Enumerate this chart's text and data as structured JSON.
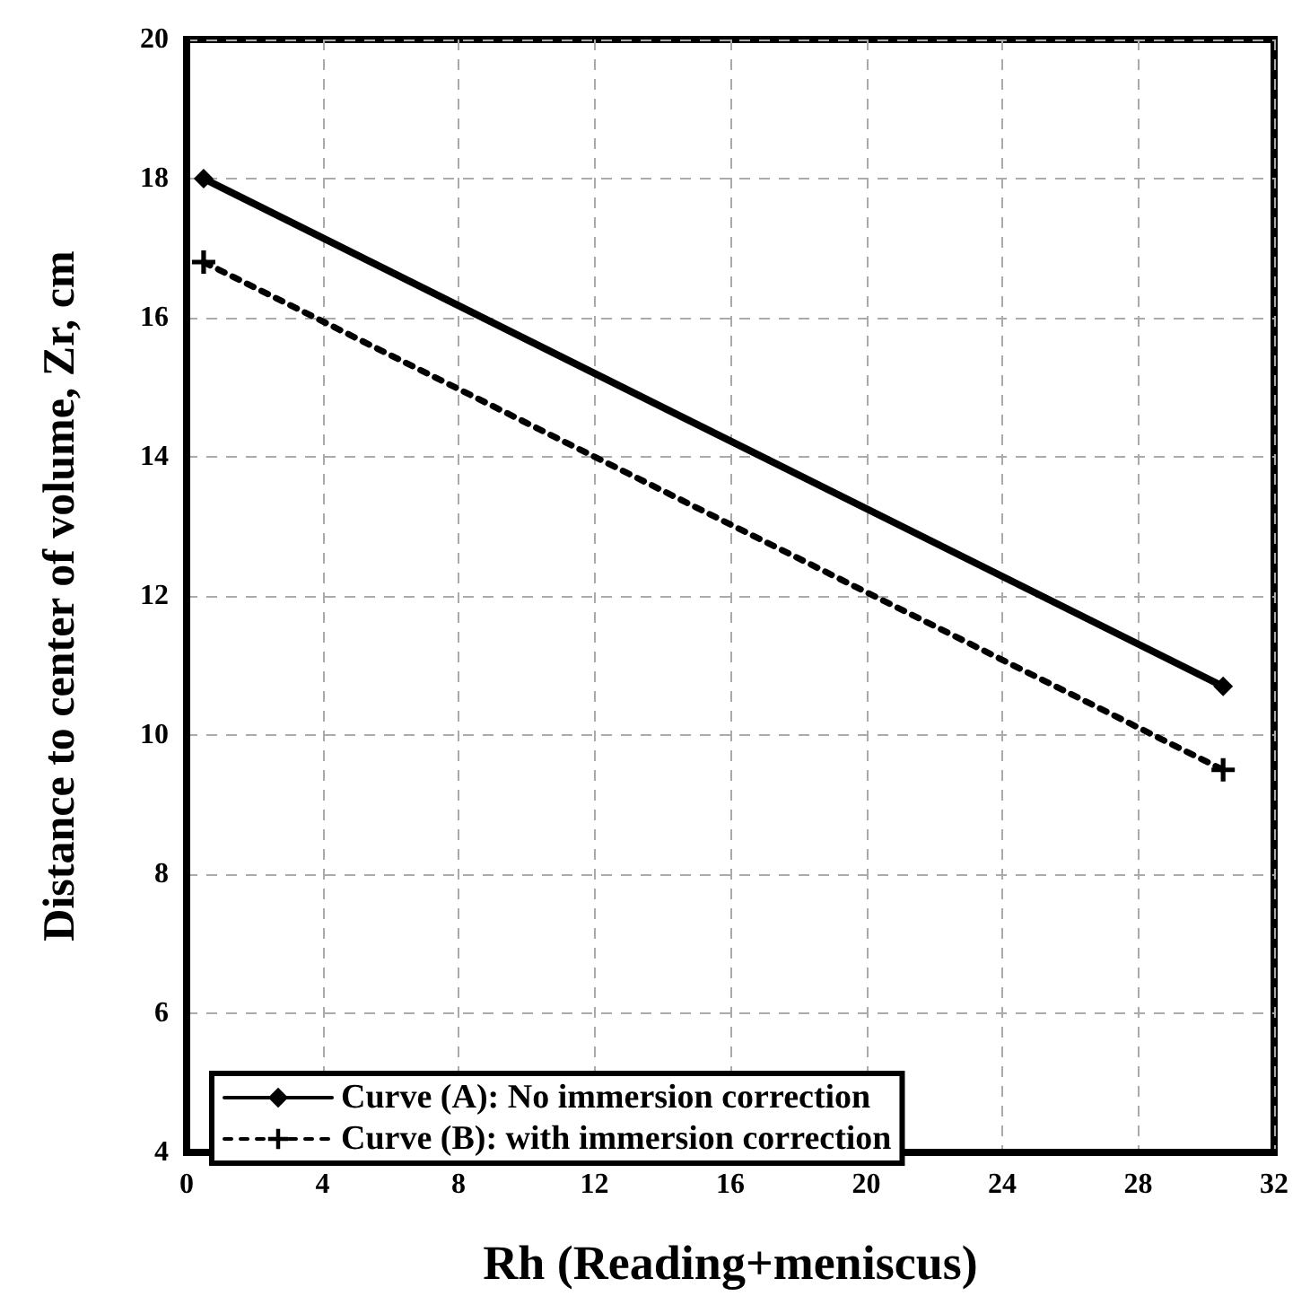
{
  "chart_data": {
    "type": "line",
    "xlabel": "Rh (Reading+meniscus)",
    "ylabel": "Distance to center of volume, Zr, cm",
    "xlim": [
      0,
      32
    ],
    "xticks": [
      0,
      4,
      8,
      12,
      16,
      20,
      24,
      28,
      32
    ],
    "ylim": [
      4,
      20
    ],
    "yticks": [
      4,
      6,
      8,
      10,
      12,
      14,
      16,
      18,
      20
    ],
    "grid": true,
    "legend": "bottom left",
    "x": [
      0.5,
      30.5
    ],
    "series": [
      {
        "name": "Curve (A): No immersion correction",
        "color": "#000000",
        "values": [
          18,
          10.7
        ],
        "marker": "diamond",
        "line_style": "solid"
      },
      {
        "name": "Curve (B): with immersion correction",
        "color": "#000000",
        "values": [
          16.8,
          9.5
        ],
        "marker": "cross",
        "line_style": "dotted"
      }
    ]
  }
}
